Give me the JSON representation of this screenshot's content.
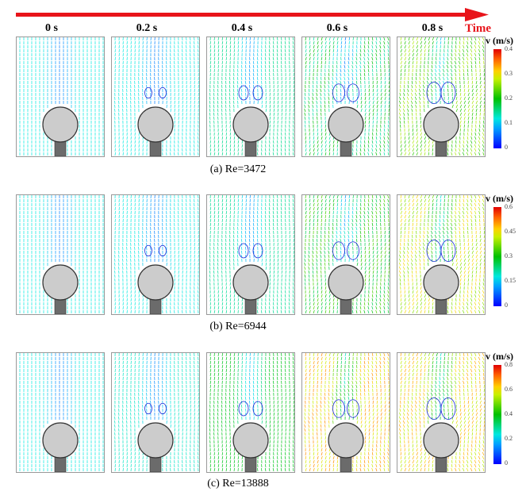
{
  "time_axis": {
    "label": "Time",
    "times": [
      "0 s",
      "0.2 s",
      "0.4 s",
      "0.6 s",
      "0.8 s"
    ],
    "arrow_color": "#e8141a"
  },
  "rows": [
    {
      "caption": "(a) Re=3472",
      "colorbar": {
        "title": "v (m/s)",
        "ticks": [
          "0.4",
          "0.3",
          "0.2",
          "0.1",
          "0"
        ],
        "max": 0.4
      },
      "panel_speed": [
        0.12,
        0.12,
        0.15,
        0.17,
        0.24
      ]
    },
    {
      "caption": "(b) Re=6944",
      "colorbar": {
        "title": "v (m/s)",
        "ticks": [
          "0.6",
          "0.45",
          "0.3",
          "0.15",
          "0"
        ],
        "max": 0.6
      },
      "panel_speed": [
        0.18,
        0.18,
        0.22,
        0.3,
        0.42
      ]
    },
    {
      "caption": "(c) Re=13888",
      "colorbar": {
        "title": "v (m/s)",
        "ticks": [
          "0.8",
          "0.6",
          "0.4",
          "0.2",
          "0"
        ],
        "max": 0.8
      },
      "panel_speed": [
        0.24,
        0.26,
        0.38,
        0.62,
        0.6
      ]
    }
  ],
  "colors": {
    "cylinder": "#cccccc",
    "stem": "#6b6b6b",
    "vortex": "#1a2bd8"
  }
}
